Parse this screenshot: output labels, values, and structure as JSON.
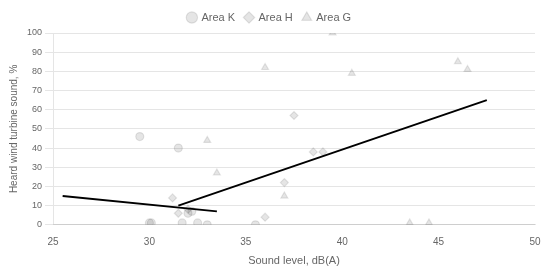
{
  "chart_data": {
    "type": "scatter",
    "x_label": "Sound level, dB(A)",
    "y_label": "Heard wind turbine sound, %",
    "series": [
      {
        "name": "Area K",
        "marker": "circle",
        "x": [
          29.5,
          30.0,
          30.1,
          31.5,
          31.7,
          32.0,
          32.2,
          32.5,
          33.0,
          35.5
        ],
        "values": [
          46,
          1,
          1,
          40,
          1,
          6,
          7,
          1,
          0,
          0
        ]
      },
      {
        "name": "Area H",
        "marker": "diamond",
        "x": [
          31.2,
          31.5,
          32.0,
          36.0,
          37.0,
          37.5,
          38.5,
          39.0
        ],
        "values": [
          14,
          6,
          8,
          4,
          22,
          57,
          38,
          38
        ]
      },
      {
        "name": "Area G",
        "marker": "triangle",
        "x": [
          33.0,
          33.5,
          36.0,
          37.0,
          39.5,
          40.5,
          43.5,
          44.5,
          46.0,
          46.5
        ],
        "values": [
          44,
          27,
          82,
          15,
          100,
          79,
          1,
          1,
          85,
          81
        ]
      },
      {
        "type": "line",
        "color": "#000000",
        "x": [
          25.5,
          33.5
        ],
        "values": [
          15,
          7
        ]
      },
      {
        "type": "line",
        "color": "#000000",
        "x": [
          31.5,
          47.5
        ],
        "values": [
          10,
          65
        ]
      }
    ],
    "xlim": [
      25,
      50
    ],
    "ylim": [
      0,
      100
    ],
    "xticks": [
      25,
      30,
      35,
      40,
      45,
      50
    ],
    "yticks": [
      0,
      10,
      20,
      30,
      40,
      50,
      60,
      70,
      80,
      90,
      100
    ],
    "grid": "y",
    "legend": "top"
  }
}
